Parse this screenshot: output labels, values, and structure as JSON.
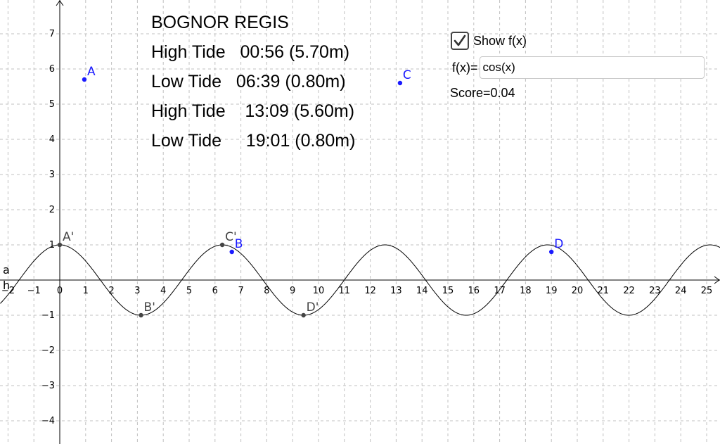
{
  "tide_table": {
    "title": "BOGNOR REGIS",
    "rows": [
      "High Tide   00:56 (5.70m)",
      "Low Tide   06:39 (0.80m)",
      "High Tide    13:09 (5.60m)",
      "Low Tide     19:01 (0.80m)"
    ]
  },
  "controls": {
    "show_fx_label": "Show f(x)",
    "show_fx_checked": true,
    "fx_label": "f(x)=",
    "fx_value": "cos(x)",
    "score_text": "Score=0.04"
  },
  "chart_data": {
    "type": "scatter",
    "function": "cos(x)",
    "xlim": [
      -2.3,
      25.6
    ],
    "ylim": [
      -4.6,
      7.9
    ],
    "x_ticks": [
      -2,
      -1,
      0,
      1,
      2,
      3,
      4,
      5,
      6,
      7,
      8,
      9,
      10,
      11,
      12,
      13,
      14,
      15,
      16,
      17,
      18,
      19,
      20,
      21,
      22,
      23,
      24,
      25
    ],
    "y_ticks": [
      -4,
      -3,
      -2,
      -1,
      1,
      2,
      3,
      4,
      5,
      6,
      7
    ],
    "grid": true,
    "axis_labels": [
      "a",
      "h"
    ],
    "points": [
      {
        "label": "A",
        "x": 0.95,
        "y": 5.7,
        "color": "#1a1aff"
      },
      {
        "label": "B",
        "x": 6.65,
        "y": 0.8,
        "color": "#1a1aff"
      },
      {
        "label": "C",
        "x": 13.15,
        "y": 5.6,
        "color": "#1a1aff"
      },
      {
        "label": "D",
        "x": 19.0,
        "y": 0.8,
        "color": "#1a1aff"
      },
      {
        "label": "A'",
        "x": 0.0,
        "y": 1.0,
        "color": "#444444"
      },
      {
        "label": "B'",
        "x": 3.14,
        "y": -1.0,
        "color": "#444444"
      },
      {
        "label": "C'",
        "x": 6.28,
        "y": 1.0,
        "color": "#444444"
      },
      {
        "label": "D'",
        "x": 9.42,
        "y": -1.0,
        "color": "#444444"
      }
    ]
  }
}
